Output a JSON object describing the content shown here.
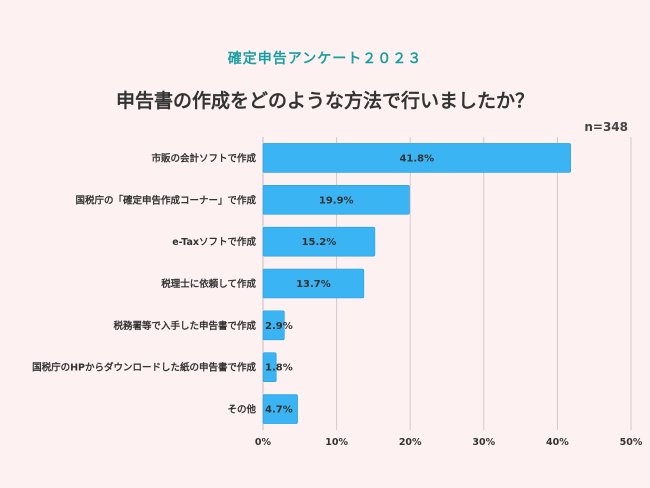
{
  "header": {
    "subtitle": "確定申告アンケート２０２３",
    "title": "申告書の作成をどのような方法で行いましたか？",
    "sample": "n=348"
  },
  "colors": {
    "bar": "#3ab4f2",
    "bar_stroke": "#2a9ee0",
    "grid": "#d7c8d0",
    "subtitle": "#1a9fa3",
    "background": "#fdf1f1"
  },
  "chart_data": {
    "type": "bar",
    "orientation": "horizontal",
    "categories": [
      "市販の会計ソフトで作成",
      "国税庁の「確定申告作成コーナー」で作成",
      "e-Taxソフトで作成",
      "税理士に依頼して作成",
      "税務署等で入手した申告書で作成",
      "国税庁のHPからダウンロードした紙の申告書で作成",
      "その他"
    ],
    "values": [
      41.8,
      19.9,
      15.2,
      13.7,
      2.9,
      1.8,
      4.7
    ],
    "value_labels": [
      "41.8%",
      "19.9%",
      "15.2%",
      "13.7%",
      "2.9%",
      "1.8%",
      "4.7%"
    ],
    "xlim": [
      0,
      50
    ],
    "xticks": [
      0,
      10,
      20,
      30,
      40,
      50
    ],
    "xtick_labels": [
      "0%",
      "10%",
      "20%",
      "30%",
      "40%",
      "50%"
    ],
    "grid": true
  }
}
